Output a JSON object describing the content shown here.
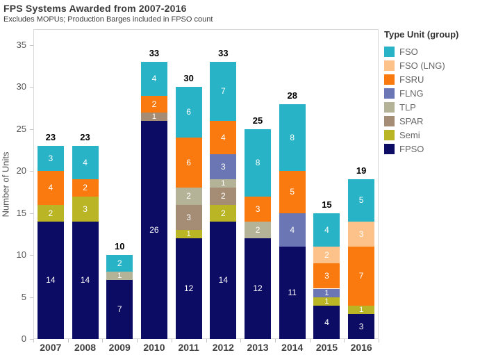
{
  "chart": {
    "title": "FPS Systems Awarded from 2007-2016",
    "subtitle": "Excludes MOPUs; Production Barges included in FPSO count",
    "ylabel": "Number of Units",
    "legend_title": "Type Unit (group)"
  },
  "chart_data": {
    "type": "bar",
    "stacked": true,
    "title": "FPS Systems Awarded from 2007-2016",
    "subtitle": "Excludes MOPUs; Production Barges included in FPSO count",
    "xlabel": "",
    "ylabel": "Number of Units",
    "categories": [
      "2007",
      "2008",
      "2009",
      "2010",
      "2011",
      "2012",
      "2013",
      "2014",
      "2015",
      "2016"
    ],
    "series": [
      {
        "name": "FPSO",
        "color": "#0c0c64",
        "values": [
          14,
          14,
          7,
          26,
          12,
          14,
          12,
          11,
          4,
          3
        ]
      },
      {
        "name": "Semi",
        "color": "#b9b525",
        "values": [
          2,
          3,
          0,
          0,
          1,
          2,
          0,
          0,
          1,
          1
        ]
      },
      {
        "name": "SPAR",
        "color": "#a58d75",
        "values": [
          0,
          0,
          0,
          1,
          3,
          2,
          0,
          0,
          0,
          0
        ]
      },
      {
        "name": "TLP",
        "color": "#b4b297",
        "values": [
          0,
          0,
          1,
          0,
          2,
          1,
          2,
          0,
          0,
          0
        ]
      },
      {
        "name": "FLNG",
        "color": "#6b77b4",
        "values": [
          0,
          0,
          0,
          0,
          0,
          3,
          0,
          4,
          1,
          0
        ]
      },
      {
        "name": "FSRU",
        "color": "#fb7a10",
        "values": [
          4,
          2,
          0,
          2,
          6,
          4,
          3,
          5,
          3,
          7
        ]
      },
      {
        "name": "FSO (LNG)",
        "color": "#fcc289",
        "values": [
          0,
          0,
          0,
          0,
          0,
          0,
          0,
          0,
          2,
          3
        ]
      },
      {
        "name": "FSO",
        "color": "#29b3c6",
        "values": [
          3,
          4,
          2,
          4,
          6,
          7,
          8,
          8,
          4,
          5
        ]
      }
    ],
    "totals": [
      23,
      23,
      10,
      33,
      30,
      33,
      25,
      28,
      15,
      19
    ],
    "yticks": [
      0,
      5,
      10,
      15,
      20,
      25,
      30,
      35
    ],
    "ylim": [
      0,
      36.9
    ],
    "grid": false,
    "legend_position": "right",
    "legend_title": "Type Unit (group)",
    "legend_order": [
      "FSO",
      "FSO (LNG)",
      "FSRU",
      "FLNG",
      "TLP",
      "SPAR",
      "Semi",
      "FPSO"
    ]
  }
}
